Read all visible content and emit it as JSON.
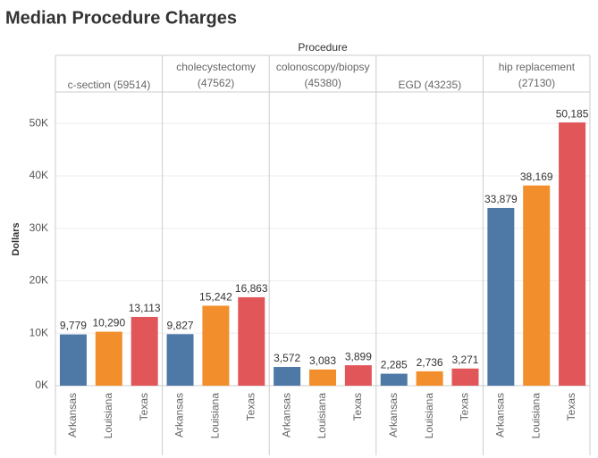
{
  "chart_data": {
    "type": "bar",
    "title": "Median Procedure Charges",
    "column_header": "Procedure",
    "y_label": "Dollars",
    "categories": [
      "c-section (59514)",
      "cholecystectomy (47562)",
      "colonoscopy/biopsy (45380)",
      "EGD (43235)",
      "hip replacement (27130)"
    ],
    "series": [
      {
        "name": "Arkansas",
        "color": "#4e79a7",
        "values": [
          9779,
          9827,
          3572,
          2285,
          33879
        ],
        "value_labels": [
          "9,779",
          "9,827",
          "3,572",
          "2,285",
          "33,879"
        ]
      },
      {
        "name": "Louisiana",
        "color": "#f28e2b",
        "values": [
          10290,
          15242,
          3083,
          2736,
          38169
        ],
        "value_labels": [
          "10,290",
          "15,242",
          "3,083",
          "2,736",
          "38,169"
        ]
      },
      {
        "name": "Texas",
        "color": "#e15759",
        "values": [
          13113,
          16863,
          3899,
          3271,
          50185
        ],
        "value_labels": [
          "13,113",
          "16,863",
          "3,899",
          "3,271",
          "50,185"
        ]
      }
    ],
    "ylim": [
      0,
      56000
    ],
    "yticks": [
      {
        "value": 0,
        "label": "0K"
      },
      {
        "value": 10000,
        "label": "10K"
      },
      {
        "value": 20000,
        "label": "20K"
      },
      {
        "value": 30000,
        "label": "30K"
      },
      {
        "value": 40000,
        "label": "40K"
      },
      {
        "value": 50000,
        "label": "50K"
      }
    ],
    "grid": true
  }
}
